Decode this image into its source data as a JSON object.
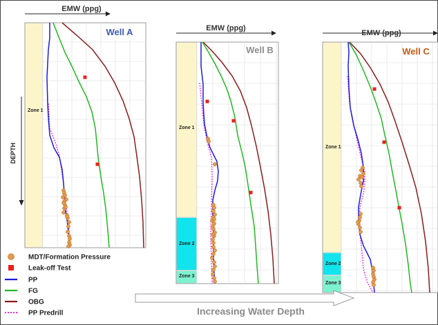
{
  "chart_data": [
    {
      "type": "line",
      "title": "Well A",
      "xlabel": "EMW (ppg)",
      "ylabel": "DEPTH",
      "grid": true,
      "zones": [
        {
          "label": "Zone 1",
          "color": "#fcf5c9"
        }
      ],
      "series": [
        {
          "name": "PP",
          "color": "#1c1cd6"
        },
        {
          "name": "FG",
          "color": "#1fb81f"
        },
        {
          "name": "OBG",
          "color": "#8b1a1a"
        },
        {
          "name": "PP Predrill",
          "color": "#ee22ee"
        }
      ],
      "leak_off_tests": 2,
      "mdt_points": 22
    },
    {
      "type": "line",
      "title": "Well B",
      "xlabel": "EMW (ppg)",
      "grid": true,
      "zones": [
        {
          "label": "Zone 1",
          "color": "#fcf5c9"
        },
        {
          "label": "Zone 2",
          "color": "#11e4ec"
        },
        {
          "label": "Zone 3",
          "color": "#7df2cf"
        }
      ],
      "series": [
        {
          "name": "PP",
          "color": "#1c1cd6"
        },
        {
          "name": "FG",
          "color": "#1fb81f"
        },
        {
          "name": "OBG",
          "color": "#8b1a1a"
        },
        {
          "name": "PP Predrill",
          "color": "#ee22ee"
        }
      ],
      "leak_off_tests": 3,
      "mdt_points": 28
    },
    {
      "type": "line",
      "title": "Well C",
      "xlabel": "EMW (ppg)",
      "grid": true,
      "zones": [
        {
          "label": "Zone 1",
          "color": "#fcf5c9"
        },
        {
          "label": "Zone 2",
          "color": "#11e4ec"
        },
        {
          "label": "Zone 3",
          "color": "#7df2cf"
        }
      ],
      "series": [
        {
          "name": "PP",
          "color": "#1c1cd6"
        },
        {
          "name": "FG",
          "color": "#1fb81f"
        },
        {
          "name": "OBG",
          "color": "#8b1a1a"
        },
        {
          "name": "PP Predrill",
          "color": "#ee22ee"
        }
      ],
      "leak_off_tests": 3,
      "mdt_points": 22
    }
  ],
  "legend": {
    "items": [
      {
        "label": "MDT/Formation Pressure",
        "symbol": "circle",
        "color": "#e79a4d"
      },
      {
        "label": "Leak-off Test",
        "symbol": "square",
        "color": "#e8201c"
      },
      {
        "label": "PP",
        "symbol": "line",
        "color": "#1c1cd6"
      },
      {
        "label": "FG",
        "symbol": "line",
        "color": "#1fb81f"
      },
      {
        "label": "OBG",
        "symbol": "line",
        "color": "#8b1a1a"
      },
      {
        "label": "PP Predrill",
        "symbol": "dotted",
        "color": "#ee22ee"
      }
    ]
  },
  "arrow_label": "Increasing Water Depth",
  "colors": {
    "title_a": "#3d5db4",
    "title_b": "#8c8c8c",
    "title_c": "#c55a11",
    "axis_text": "#333333"
  }
}
